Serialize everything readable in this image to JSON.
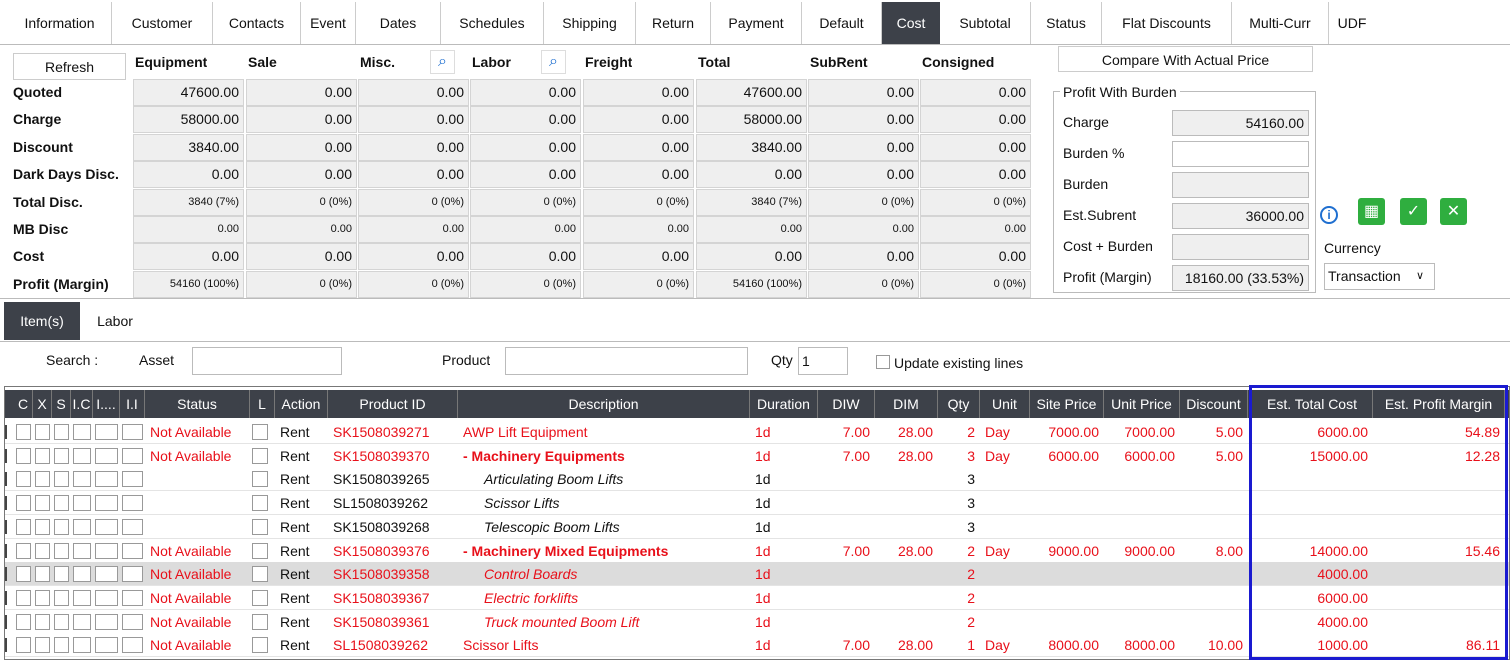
{
  "tabs": {
    "items": [
      "Information",
      "Customer",
      "Contacts",
      "Event",
      "Dates",
      "Schedules",
      "Shipping",
      "Return",
      "Payment",
      "Default",
      "Cost",
      "Subtotal",
      "Status",
      "Flat Discounts",
      "Multi-Curr",
      "UDF"
    ],
    "active": 10
  },
  "cost": {
    "refresh": "Refresh",
    "columns": [
      "Equipment",
      "Sale",
      "Misc.",
      "Labor",
      "Freight",
      "Total",
      "SubRent",
      "Consigned"
    ],
    "rows": [
      {
        "label": "Quoted",
        "values": [
          "47600.00",
          "0.00",
          "0.00",
          "0.00",
          "0.00",
          "47600.00",
          "0.00",
          "0.00"
        ],
        "small": false
      },
      {
        "label": "Charge",
        "values": [
          "58000.00",
          "0.00",
          "0.00",
          "0.00",
          "0.00",
          "58000.00",
          "0.00",
          "0.00"
        ],
        "small": false
      },
      {
        "label": "Discount",
        "values": [
          "3840.00",
          "0.00",
          "0.00",
          "0.00",
          "0.00",
          "3840.00",
          "0.00",
          "0.00"
        ],
        "small": false
      },
      {
        "label": "Dark Days Disc.",
        "values": [
          "0.00",
          "0.00",
          "0.00",
          "0.00",
          "0.00",
          "0.00",
          "0.00",
          "0.00"
        ],
        "small": false
      },
      {
        "label": "Total Disc.",
        "values": [
          "3840 (7%)",
          "0 (0%)",
          "0 (0%)",
          "0 (0%)",
          "0 (0%)",
          "3840 (7%)",
          "0 (0%)",
          "0 (0%)"
        ],
        "small": true
      },
      {
        "label": "MB Disc",
        "values": [
          "0.00",
          "0.00",
          "0.00",
          "0.00",
          "0.00",
          "0.00",
          "0.00",
          "0.00"
        ],
        "small": true
      },
      {
        "label": "Cost",
        "values": [
          "0.00",
          "0.00",
          "0.00",
          "0.00",
          "0.00",
          "0.00",
          "0.00",
          "0.00"
        ],
        "small": false
      },
      {
        "label": "Profit (Margin)",
        "values": [
          "54160 (100%)",
          "0 (0%)",
          "0 (0%)",
          "0 (0%)",
          "0 (0%)",
          "54160 (100%)",
          "0 (0%)",
          "0 (0%)"
        ],
        "small": true
      }
    ]
  },
  "profit": {
    "compare": "Compare With Actual Price",
    "title": "Profit With Burden",
    "fields": [
      {
        "label": "Charge",
        "value": "54160.00",
        "editable": false
      },
      {
        "label": "Burden %",
        "value": null,
        "editable": true
      },
      {
        "label": "Burden",
        "value": null,
        "editable": false
      },
      {
        "label": "Est.Subrent",
        "value": "36000.00",
        "editable": false
      },
      {
        "label": "Cost + Burden",
        "value": null,
        "editable": false
      },
      {
        "label": "Profit (Margin)",
        "value": "18160.00 (33.53%)",
        "editable": false
      }
    ],
    "currency_label": "Currency",
    "currency": "Transaction"
  },
  "lines": {
    "tabs": {
      "items": [
        "Item(s)",
        "Labor"
      ],
      "active": 0
    },
    "search": {
      "label": "Search :",
      "asset": "Asset",
      "product": "Product",
      "qty": "Qty",
      "qty_value": "1",
      "update": "Update existing lines"
    },
    "columns": [
      "C",
      "X",
      "S",
      "I.C",
      "I....",
      "I.I",
      "Status",
      "L",
      "Action",
      "Product ID",
      "Description",
      "Duration",
      "DIW",
      "DIM",
      "Qty",
      "Unit",
      "Site Price",
      "Unit Price",
      "Discount",
      "Est. Total Cost",
      "Est. Profit Margin"
    ],
    "rows": [
      {
        "cells": [
          "Not Available",
          "Rent",
          "SK1508039271",
          "AWP Lift Equipment",
          "1d",
          "7.00",
          "28.00",
          "2",
          "Day",
          "7000.00",
          "7000.00",
          "5.00",
          "6000.00",
          "54.89"
        ],
        "color": "#e8101a",
        "style": "normal",
        "selected": false
      },
      {
        "cells": [
          "Not Available",
          "Rent",
          "SK1508039370",
          "- Machinery Equipments",
          "1d",
          "7.00",
          "28.00",
          "3",
          "Day",
          "6000.00",
          "6000.00",
          "5.00",
          "15000.00",
          "12.28"
        ],
        "color": "#e8101a",
        "style": "bold",
        "selected": false
      },
      {
        "cells": [
          null,
          "Rent",
          "SK1508039265",
          "Articulating Boom Lifts",
          "1d",
          null,
          null,
          "3",
          null,
          null,
          null,
          null,
          null,
          null
        ],
        "color": "#111111",
        "style": "italic",
        "selected": false
      },
      {
        "cells": [
          null,
          "Rent",
          "SL1508039262",
          "Scissor Lifts",
          "1d",
          null,
          null,
          "3",
          null,
          null,
          null,
          null,
          null,
          null
        ],
        "color": "#111111",
        "style": "italic",
        "selected": false
      },
      {
        "cells": [
          null,
          "Rent",
          "SK1508039268",
          "Telescopic Boom Lifts",
          "1d",
          null,
          null,
          "3",
          null,
          null,
          null,
          null,
          null,
          null
        ],
        "color": "#111111",
        "style": "italic",
        "selected": false
      },
      {
        "cells": [
          "Not Available",
          "Rent",
          "SK1508039376",
          "- Machinery Mixed Equipments",
          "1d",
          "7.00",
          "28.00",
          "2",
          "Day",
          "9000.00",
          "9000.00",
          "8.00",
          "14000.00",
          "15.46"
        ],
        "color": "#e8101a",
        "style": "bold",
        "selected": false
      },
      {
        "cells": [
          "Not Available",
          "Rent",
          "SK1508039358",
          "Control Boards",
          "1d",
          null,
          null,
          "2",
          null,
          null,
          null,
          null,
          "4000.00",
          null
        ],
        "color": "#e8101a",
        "style": "italic",
        "selected": true
      },
      {
        "cells": [
          "Not Available",
          "Rent",
          "SK1508039367",
          "Electric forklifts",
          "1d",
          null,
          null,
          "2",
          null,
          null,
          null,
          null,
          "6000.00",
          null
        ],
        "color": "#e8101a",
        "style": "italic",
        "selected": false
      },
      {
        "cells": [
          "Not Available",
          "Rent",
          "SK1508039361",
          "Truck mounted Boom Lift",
          "1d",
          null,
          null,
          "2",
          null,
          null,
          null,
          null,
          "4000.00",
          null
        ],
        "color": "#e8101a",
        "style": "italic",
        "selected": false
      },
      {
        "cells": [
          "Not Available",
          "Rent",
          "SL1508039262",
          "Scissor Lifts",
          "1d",
          "7.00",
          "28.00",
          "1",
          "Day",
          "8000.00",
          "8000.00",
          "10.00",
          "1000.00",
          "86.11"
        ],
        "color": "#e8101a",
        "style": "normal",
        "selected": false
      }
    ]
  }
}
